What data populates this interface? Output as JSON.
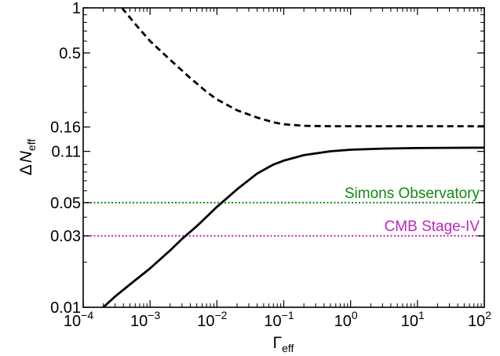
{
  "chart_data": {
    "type": "line",
    "title": "",
    "xlabel": {
      "base": "Γ",
      "sub": "eff"
    },
    "ylabel": {
      "prefix": "Δ",
      "base": "N",
      "sub": "eff"
    },
    "x_scale": "log",
    "y_scale": "log",
    "xlim": [
      0.0001,
      100
    ],
    "ylim": [
      0.01,
      1
    ],
    "x_ticks": [
      {
        "value": 0.0001,
        "base": "10",
        "exp": "−4"
      },
      {
        "value": 0.001,
        "base": "10",
        "exp": "−3"
      },
      {
        "value": 0.01,
        "base": "10",
        "exp": "−2"
      },
      {
        "value": 0.1,
        "base": "10",
        "exp": "−1"
      },
      {
        "value": 1,
        "base": "10",
        "exp": "0"
      },
      {
        "value": 10,
        "base": "10",
        "exp": "1"
      },
      {
        "value": 100,
        "base": "10",
        "exp": "2"
      }
    ],
    "y_ticks": [
      {
        "value": 0.01,
        "label": "0.01"
      },
      {
        "value": 0.03,
        "label": "0.03"
      },
      {
        "value": 0.05,
        "label": "0.05"
      },
      {
        "value": 0.11,
        "label": "0.11"
      },
      {
        "value": 0.16,
        "label": "0.16"
      },
      {
        "value": 0.5,
        "label": "0.5"
      },
      {
        "value": 1,
        "label": "1"
      }
    ],
    "grid": false,
    "series": [
      {
        "style": "dashed",
        "color": "#000000",
        "x": [
          0.00038,
          0.0006,
          0.001,
          0.002,
          0.004,
          0.007,
          0.01,
          0.02,
          0.04,
          0.07,
          0.1,
          0.2,
          0.5,
          1,
          3,
          10,
          30,
          100
        ],
        "y": [
          1.0,
          0.78,
          0.6,
          0.45,
          0.34,
          0.275,
          0.245,
          0.207,
          0.185,
          0.172,
          0.167,
          0.163,
          0.162,
          0.162,
          0.162,
          0.162,
          0.162,
          0.162
        ]
      },
      {
        "style": "solid",
        "color": "#000000",
        "x": [
          0.0002,
          0.0003,
          0.0005,
          0.001,
          0.002,
          0.003,
          0.005,
          0.01,
          0.02,
          0.04,
          0.07,
          0.1,
          0.2,
          0.5,
          1,
          3,
          10,
          30,
          100
        ],
        "y": [
          0.01,
          0.0118,
          0.0142,
          0.0182,
          0.024,
          0.0286,
          0.0348,
          0.0468,
          0.0614,
          0.0782,
          0.0898,
          0.0954,
          0.1038,
          0.1102,
          0.1128,
          0.1148,
          0.1158,
          0.1162,
          0.1164
        ]
      }
    ],
    "reference_lines": [
      {
        "y": 0.05,
        "label": "Simons Observatory",
        "color": "#0e8a0e",
        "style": "dotted"
      },
      {
        "y": 0.03,
        "label": "CMB Stage-IV",
        "color": "#c026c0",
        "style": "dotted"
      }
    ]
  }
}
